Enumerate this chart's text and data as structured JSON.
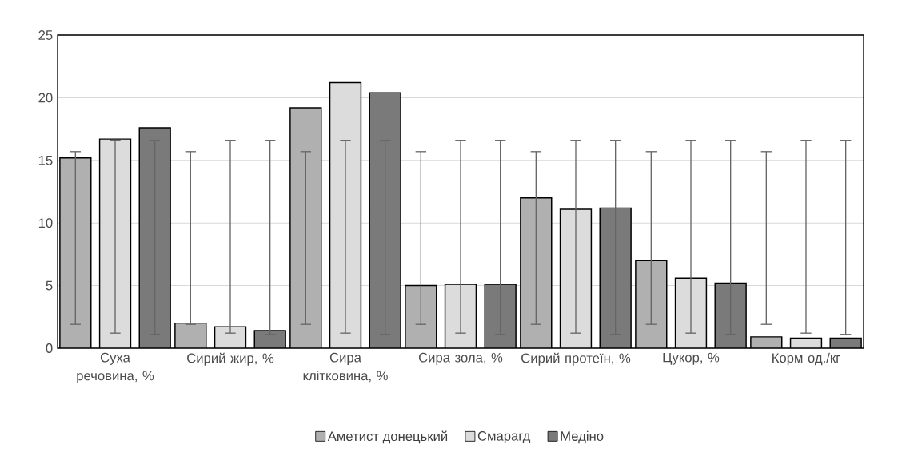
{
  "chart_data": {
    "type": "bar",
    "categories": [
      "Суха речовина, %",
      "Сирий жир, %",
      "Сира клітковина, %",
      "Сира зола, %",
      "Сирий протеїн, %",
      "Цукор, %",
      "Корм од./кг"
    ],
    "series": [
      {
        "name": "Аметист донецький",
        "color": "#b0b0b0",
        "values": [
          15.2,
          2.0,
          19.2,
          5.0,
          12.0,
          7.0,
          0.9
        ],
        "errors": [
          [
            1.9,
            15.7
          ],
          [
            1.9,
            15.7
          ],
          [
            1.9,
            15.7
          ],
          [
            1.9,
            15.7
          ],
          [
            1.9,
            15.7
          ],
          [
            1.9,
            15.7
          ],
          [
            1.9,
            15.7
          ]
        ]
      },
      {
        "name": "Смарагд",
        "color": "#dcdcdc",
        "values": [
          16.7,
          1.7,
          21.2,
          5.1,
          11.1,
          5.6,
          0.8
        ],
        "errors": [
          [
            1.2,
            16.6
          ],
          [
            1.2,
            16.6
          ],
          [
            1.2,
            16.6
          ],
          [
            1.2,
            16.6
          ],
          [
            1.2,
            16.6
          ],
          [
            1.2,
            16.6
          ],
          [
            1.2,
            16.6
          ]
        ]
      },
      {
        "name": "Медіно",
        "color": "#7a7a7a",
        "values": [
          17.6,
          1.4,
          20.4,
          5.1,
          11.2,
          5.2,
          0.8
        ],
        "errors": [
          [
            1.1,
            16.6
          ],
          [
            1.1,
            16.6
          ],
          [
            1.1,
            16.6
          ],
          [
            1.1,
            16.6
          ],
          [
            1.1,
            16.6
          ],
          [
            1.1,
            16.6
          ],
          [
            1.1,
            16.6
          ]
        ]
      }
    ],
    "ylim": [
      0,
      25
    ],
    "yticks": [
      0,
      5,
      10,
      15,
      20,
      25
    ],
    "grid": "y",
    "legend": "bottom"
  }
}
